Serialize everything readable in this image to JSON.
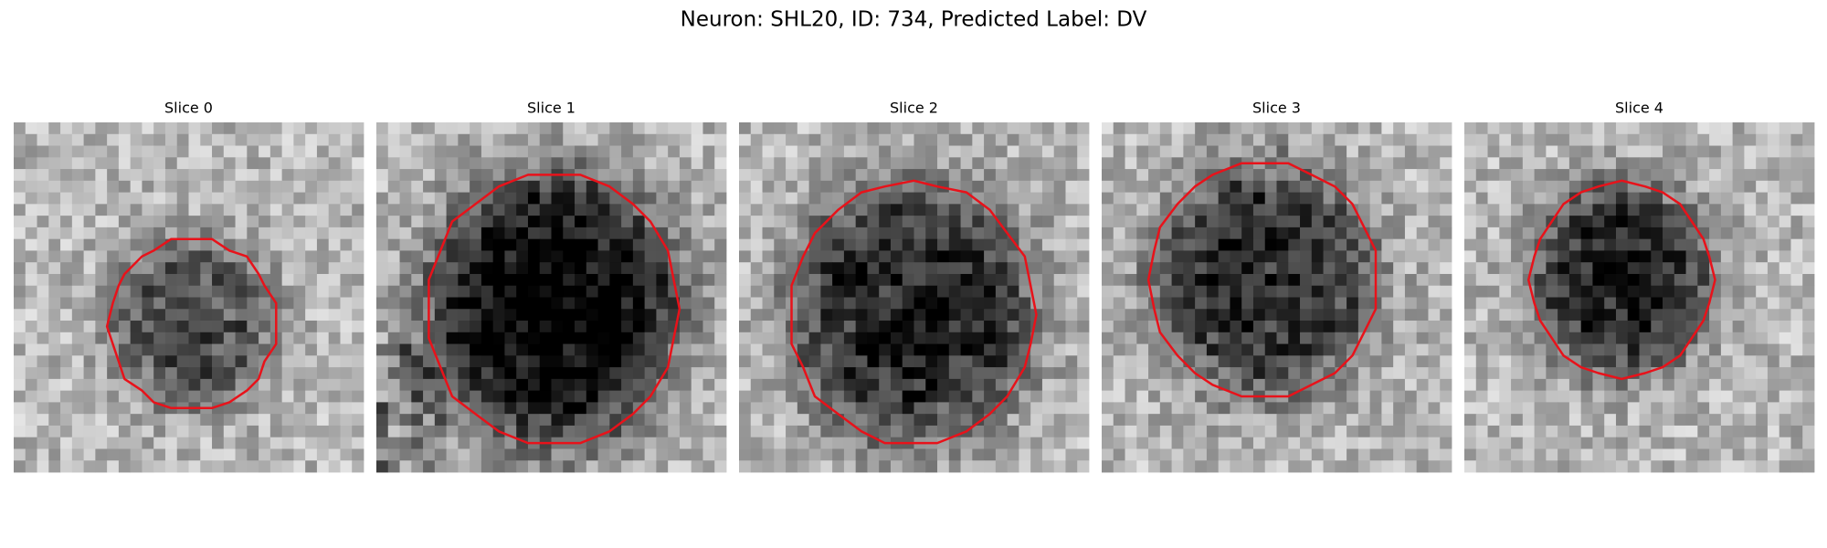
{
  "figure": {
    "title": "Neuron: SHL20, ID: 734, Predicted Label: DV",
    "panels": [
      {
        "title": "Slice 0"
      },
      {
        "title": "Slice 1"
      },
      {
        "title": "Slice 2"
      },
      {
        "title": "Slice 3"
      },
      {
        "title": "Slice 4"
      }
    ]
  }
}
